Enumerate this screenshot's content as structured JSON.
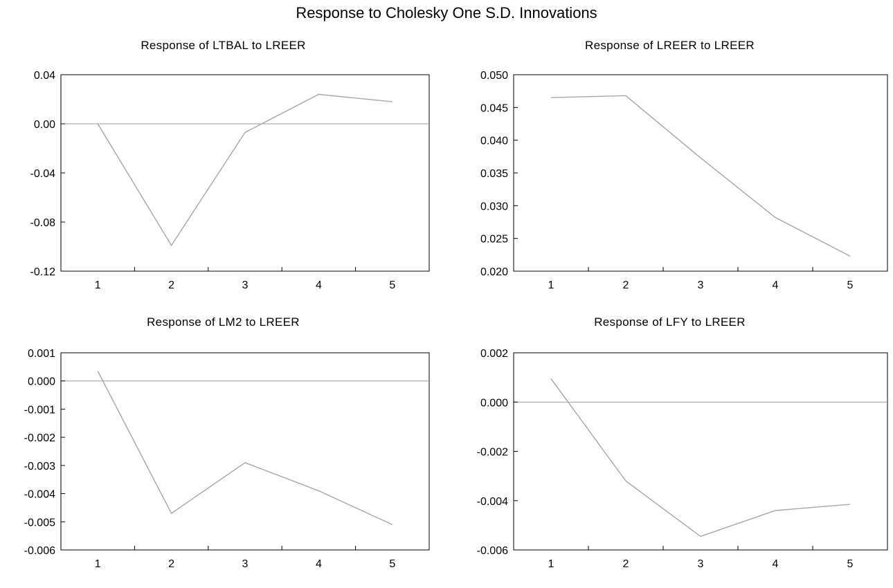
{
  "title": "Response to Cholesky One S.D. Innovations",
  "chart_data": [
    {
      "type": "line",
      "title": "Response of LTBAL to LREER",
      "x": [
        1,
        2,
        3,
        4,
        5
      ],
      "series": [
        {
          "values": [
            0.0,
            -0.099,
            -0.007,
            0.024,
            0.018
          ]
        }
      ],
      "ylim": [
        -0.12,
        0.04
      ],
      "yticks": [
        0.04,
        0.0,
        -0.04,
        -0.08,
        -0.12
      ],
      "ytick_labels": [
        "0.04",
        "0.00",
        "-0.04",
        "-0.08",
        "-0.12"
      ],
      "xtick_labels": [
        "1",
        "2",
        "3",
        "4",
        "5"
      ],
      "zero_line": true,
      "grid": false,
      "line_color": "#a6a6a6"
    },
    {
      "type": "line",
      "title": "Response of LREER to LREER",
      "x": [
        1,
        2,
        3,
        4,
        5
      ],
      "series": [
        {
          "values": [
            0.0465,
            0.0468,
            0.0373,
            0.0282,
            0.0223
          ]
        }
      ],
      "ylim": [
        0.02,
        0.05
      ],
      "yticks": [
        0.05,
        0.045,
        0.04,
        0.035,
        0.03,
        0.025,
        0.02
      ],
      "ytick_labels": [
        "0.050",
        "0.045",
        "0.040",
        "0.035",
        "0.030",
        "0.025",
        "0.020"
      ],
      "xtick_labels": [
        "1",
        "2",
        "3",
        "4",
        "5"
      ],
      "zero_line": false,
      "grid": false,
      "line_color": "#a6a6a6"
    },
    {
      "type": "line",
      "title": "Response of LM2 to LREER",
      "x": [
        1,
        2,
        3,
        4,
        5
      ],
      "series": [
        {
          "values": [
            0.00035,
            -0.0047,
            -0.0029,
            -0.0039,
            -0.0051
          ]
        }
      ],
      "ylim": [
        -0.006,
        0.001
      ],
      "yticks": [
        0.001,
        0.0,
        -0.001,
        -0.002,
        -0.003,
        -0.004,
        -0.005,
        -0.006
      ],
      "ytick_labels": [
        "0.001",
        "0.000",
        "-0.001",
        "-0.002",
        "-0.003",
        "-0.004",
        "-0.005",
        "-0.006"
      ],
      "xtick_labels": [
        "1",
        "2",
        "3",
        "4",
        "5"
      ],
      "zero_line": true,
      "grid": false,
      "line_color": "#a6a6a6"
    },
    {
      "type": "line",
      "title": "Response of LFY to LREER",
      "x": [
        1,
        2,
        3,
        4,
        5
      ],
      "series": [
        {
          "values": [
            0.00095,
            -0.0032,
            -0.00545,
            -0.0044,
            -0.00415
          ]
        }
      ],
      "ylim": [
        -0.006,
        0.002
      ],
      "yticks": [
        0.002,
        0.0,
        -0.002,
        -0.004,
        -0.006
      ],
      "ytick_labels": [
        "0.002",
        "0.000",
        "-0.002",
        "-0.004",
        "-0.006"
      ],
      "xtick_labels": [
        "1",
        "2",
        "3",
        "4",
        "5"
      ],
      "zero_line": true,
      "grid": false,
      "line_color": "#a6a6a6"
    }
  ]
}
